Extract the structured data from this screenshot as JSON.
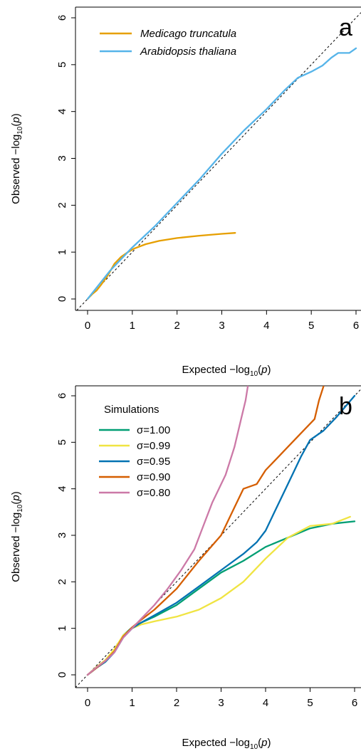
{
  "chart_data": [
    {
      "type": "line",
      "panel_label": "a",
      "xlabel": {
        "main": "Expected −log",
        "sub": "10",
        "open": "(",
        "var": "p",
        "close": ")"
      },
      "ylabel": {
        "main": "Observed −log",
        "sub": "10",
        "open": "(",
        "var": "p",
        "close": ")"
      },
      "xlim": [
        0,
        6
      ],
      "ylim": [
        0,
        6
      ],
      "xticks": [
        0,
        1,
        2,
        3,
        4,
        5,
        6
      ],
      "yticks": [
        0,
        1,
        2,
        3,
        4,
        5,
        6
      ],
      "grid": false,
      "reference_line": "y = x (dashed)",
      "legend": {
        "position": "top-left",
        "entries": [
          "Medicago truncatula",
          "Arabidopsis thaliana"
        ]
      },
      "series": [
        {
          "name": "Medicago truncatula",
          "color": "#E69F00",
          "points": [
            [
              0,
              0
            ],
            [
              0.1,
              0.1
            ],
            [
              0.2,
              0.18
            ],
            [
              0.3,
              0.3
            ],
            [
              0.45,
              0.5
            ],
            [
              0.6,
              0.75
            ],
            [
              0.75,
              0.9
            ],
            [
              0.9,
              1.0
            ],
            [
              1.05,
              1.08
            ],
            [
              1.3,
              1.17
            ],
            [
              1.6,
              1.24
            ],
            [
              2.0,
              1.3
            ],
            [
              2.5,
              1.35
            ],
            [
              3.0,
              1.39
            ],
            [
              3.3,
              1.41
            ]
          ]
        },
        {
          "name": "Arabidopsis thaliana",
          "color": "#56B4E9",
          "points": [
            [
              0,
              0
            ],
            [
              0.5,
              0.6
            ],
            [
              1.0,
              1.1
            ],
            [
              1.5,
              1.55
            ],
            [
              2.0,
              2.05
            ],
            [
              2.5,
              2.55
            ],
            [
              3.0,
              3.1
            ],
            [
              3.5,
              3.6
            ],
            [
              4.0,
              4.05
            ],
            [
              4.4,
              4.45
            ],
            [
              4.7,
              4.72
            ],
            [
              5.0,
              4.85
            ],
            [
              5.25,
              4.98
            ],
            [
              5.45,
              5.15
            ],
            [
              5.6,
              5.25
            ],
            [
              5.85,
              5.25
            ],
            [
              6.0,
              5.35
            ]
          ]
        }
      ]
    },
    {
      "type": "line",
      "panel_label": "b",
      "xlabel": {
        "main": "Expected −log",
        "sub": "10",
        "open": "(",
        "var": "p",
        "close": ")"
      },
      "ylabel": {
        "main": "Observed −log",
        "sub": "10",
        "open": "(",
        "var": "p",
        "close": ")"
      },
      "xlim": [
        0,
        6
      ],
      "ylim": [
        0,
        6
      ],
      "xticks": [
        0,
        1,
        2,
        3,
        4,
        5,
        6
      ],
      "yticks": [
        0,
        1,
        2,
        3,
        4,
        5,
        6
      ],
      "grid": false,
      "reference_line": "y = x (dashed)",
      "legend": {
        "position": "top-left",
        "title": "Simulations",
        "entries": [
          "σ=1.00",
          "σ=0.99",
          "σ=0.95",
          "σ=0.90",
          "σ=0.80"
        ]
      },
      "series": [
        {
          "name": "σ=1.00",
          "color": "#009E73",
          "points": [
            [
              0,
              0
            ],
            [
              0.2,
              0.15
            ],
            [
              0.4,
              0.28
            ],
            [
              0.6,
              0.5
            ],
            [
              0.8,
              0.85
            ],
            [
              1.0,
              1.02
            ],
            [
              1.2,
              1.12
            ],
            [
              1.5,
              1.25
            ],
            [
              2.0,
              1.5
            ],
            [
              2.5,
              1.85
            ],
            [
              3.0,
              2.2
            ],
            [
              3.5,
              2.45
            ],
            [
              4.0,
              2.75
            ],
            [
              4.5,
              2.95
            ],
            [
              5.0,
              3.15
            ],
            [
              5.5,
              3.25
            ],
            [
              6.0,
              3.3
            ]
          ]
        },
        {
          "name": "σ=0.99",
          "color": "#F0E442",
          "points": [
            [
              0,
              0
            ],
            [
              0.2,
              0.17
            ],
            [
              0.4,
              0.32
            ],
            [
              0.6,
              0.55
            ],
            [
              0.8,
              0.85
            ],
            [
              1.0,
              1.0
            ],
            [
              1.2,
              1.08
            ],
            [
              1.5,
              1.15
            ],
            [
              2.0,
              1.25
            ],
            [
              2.5,
              1.4
            ],
            [
              3.0,
              1.65
            ],
            [
              3.5,
              2.0
            ],
            [
              4.0,
              2.5
            ],
            [
              4.5,
              2.95
            ],
            [
              5.0,
              3.2
            ],
            [
              5.5,
              3.25
            ],
            [
              5.9,
              3.4
            ]
          ]
        },
        {
          "name": "σ=0.95",
          "color": "#0072B2",
          "points": [
            [
              0,
              0
            ],
            [
              0.2,
              0.15
            ],
            [
              0.4,
              0.28
            ],
            [
              0.6,
              0.48
            ],
            [
              0.8,
              0.8
            ],
            [
              1.0,
              1.0
            ],
            [
              1.2,
              1.12
            ],
            [
              1.5,
              1.28
            ],
            [
              2.0,
              1.55
            ],
            [
              2.5,
              1.9
            ],
            [
              3.0,
              2.25
            ],
            [
              3.5,
              2.6
            ],
            [
              3.8,
              2.85
            ],
            [
              4.0,
              3.1
            ],
            [
              4.2,
              3.5
            ],
            [
              4.4,
              3.9
            ],
            [
              4.6,
              4.3
            ],
            [
              4.8,
              4.7
            ],
            [
              5.0,
              5.05
            ],
            [
              5.3,
              5.25
            ],
            [
              5.6,
              5.55
            ],
            [
              6.0,
              6.0
            ]
          ]
        },
        {
          "name": "σ=0.90",
          "color": "#D55E00",
          "points": [
            [
              0,
              0
            ],
            [
              0.2,
              0.15
            ],
            [
              0.4,
              0.3
            ],
            [
              0.6,
              0.5
            ],
            [
              0.8,
              0.82
            ],
            [
              1.0,
              1.02
            ],
            [
              1.2,
              1.18
            ],
            [
              1.5,
              1.4
            ],
            [
              2.0,
              1.85
            ],
            [
              2.5,
              2.45
            ],
            [
              3.0,
              3.0
            ],
            [
              3.3,
              3.6
            ],
            [
              3.5,
              4.0
            ],
            [
              3.8,
              4.1
            ],
            [
              4.0,
              4.4
            ],
            [
              4.3,
              4.7
            ],
            [
              4.6,
              5.0
            ],
            [
              4.9,
              5.3
            ],
            [
              5.1,
              5.5
            ],
            [
              5.2,
              5.9
            ],
            [
              5.3,
              6.2
            ]
          ]
        },
        {
          "name": "σ=0.80",
          "color": "#CC79A7",
          "points": [
            [
              0,
              0
            ],
            [
              0.2,
              0.16
            ],
            [
              0.4,
              0.3
            ],
            [
              0.6,
              0.48
            ],
            [
              0.8,
              0.8
            ],
            [
              1.0,
              1.0
            ],
            [
              1.2,
              1.2
            ],
            [
              1.5,
              1.5
            ],
            [
              1.8,
              1.85
            ],
            [
              2.1,
              2.25
            ],
            [
              2.4,
              2.7
            ],
            [
              2.6,
              3.2
            ],
            [
              2.8,
              3.7
            ],
            [
              2.95,
              4.0
            ],
            [
              3.1,
              4.3
            ],
            [
              3.3,
              4.9
            ],
            [
              3.45,
              5.5
            ],
            [
              3.55,
              5.9
            ],
            [
              3.6,
              6.2
            ]
          ]
        }
      ]
    }
  ]
}
